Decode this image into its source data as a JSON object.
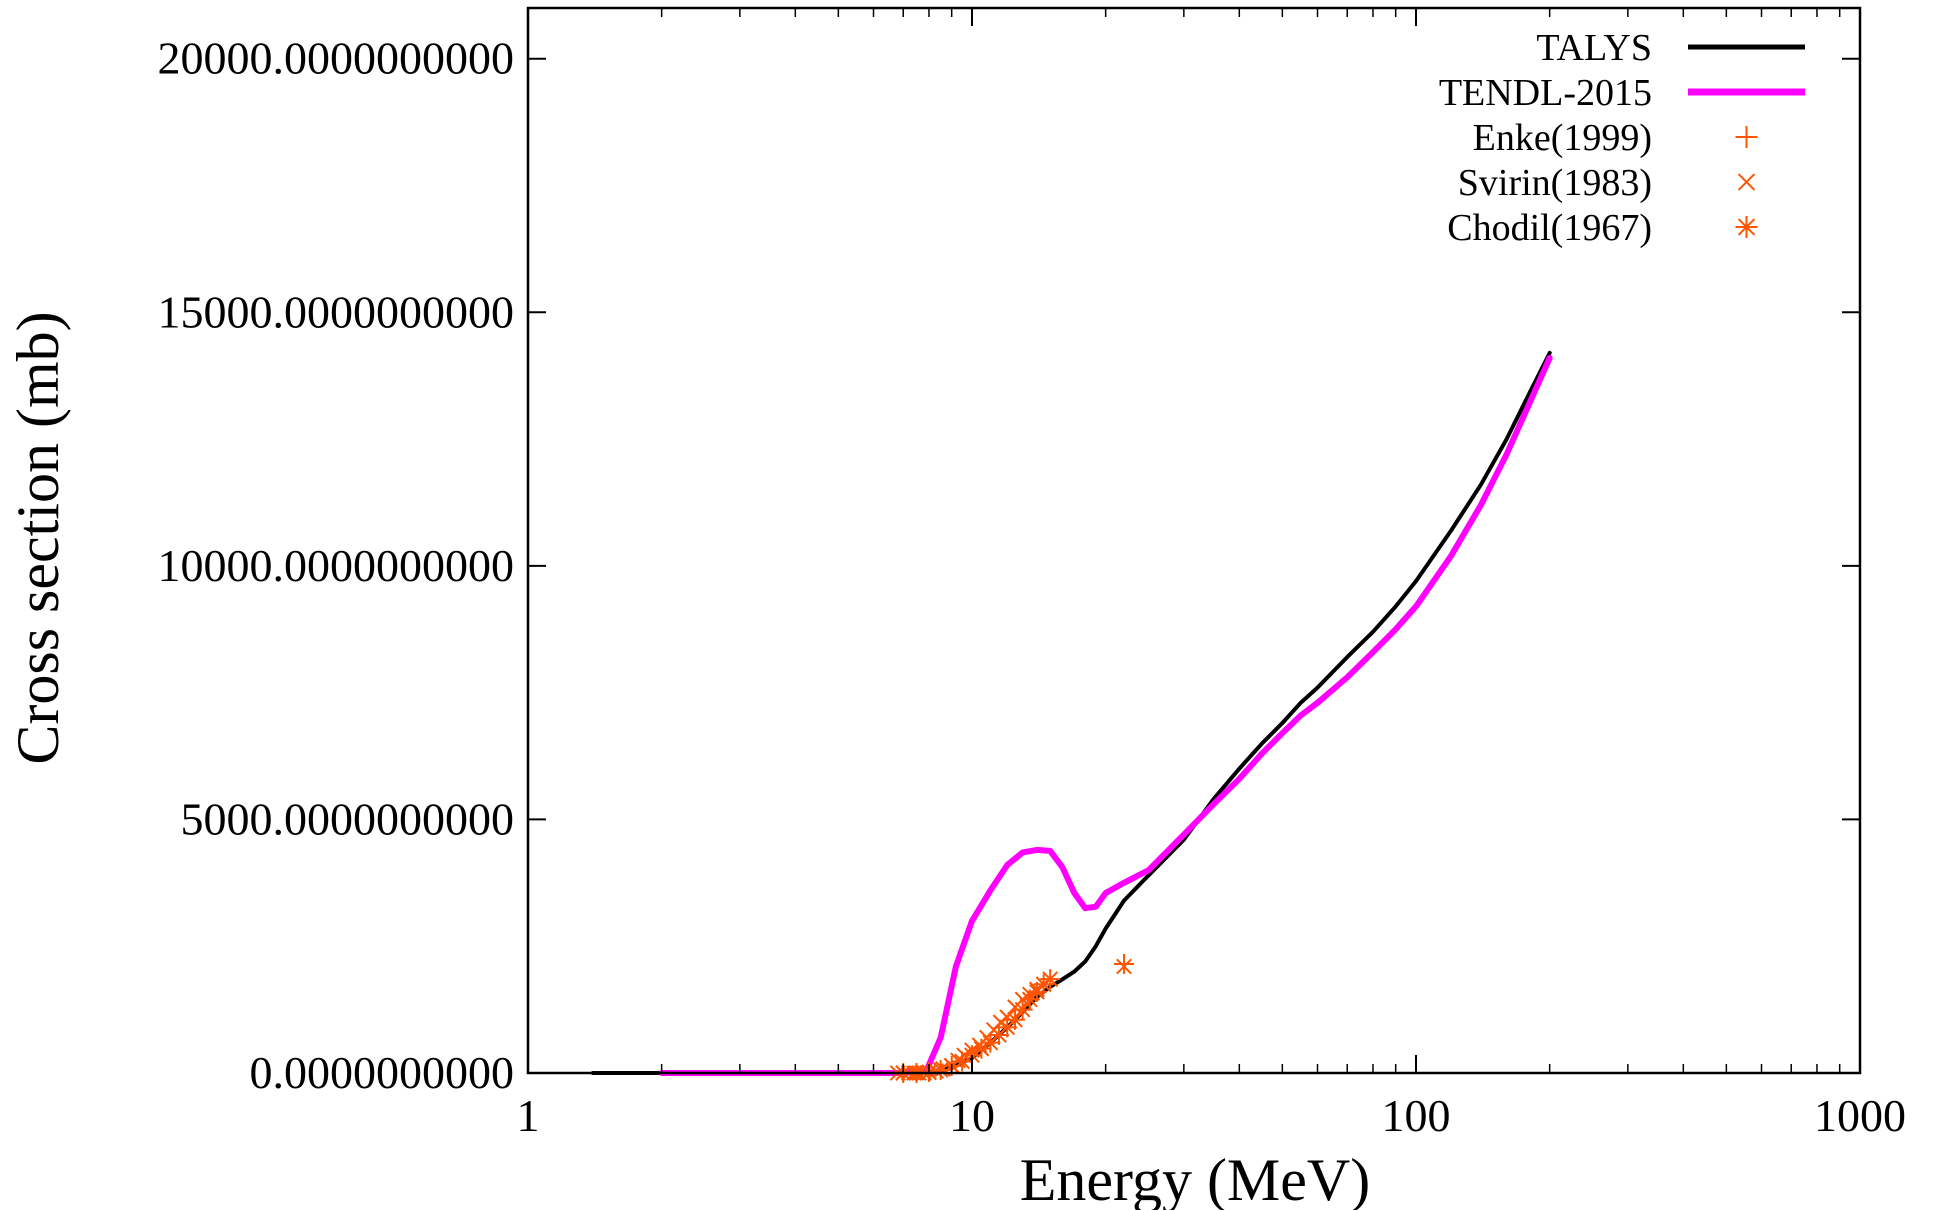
{
  "chart_data": {
    "type": "line",
    "xlabel": "Energy (MeV)",
    "ylabel": "Cross section (mb)",
    "xscale": "log",
    "xlim": [
      1,
      1000
    ],
    "ylim": [
      0,
      21000
    ],
    "xticks": [
      1,
      10,
      100,
      1000
    ],
    "xtick_labels": [
      "1",
      "10",
      "100",
      "1000"
    ],
    "yticks": [
      0,
      5000,
      10000,
      15000,
      20000
    ],
    "ytick_labels": [
      "0.0000000000",
      "5000.0000000000",
      "10000.0000000000",
      "15000.0000000000",
      "20000.0000000000"
    ],
    "grid": false,
    "legend_position": "top-right",
    "series": [
      {
        "name": "TALYS",
        "kind": "line",
        "color": "#000000",
        "x": [
          1.4,
          2,
          3,
          5,
          7,
          8,
          9,
          10,
          11,
          12,
          13,
          14,
          15,
          16,
          17,
          18,
          19,
          20,
          22,
          25,
          30,
          35,
          40,
          45,
          50,
          55,
          60,
          70,
          80,
          90,
          100,
          120,
          140,
          160,
          180,
          200
        ],
        "y": [
          0,
          0,
          0,
          0,
          0,
          20,
          100,
          300,
          600,
          900,
          1200,
          1500,
          1700,
          1850,
          2000,
          2200,
          2500,
          2850,
          3400,
          3900,
          4600,
          5400,
          6000,
          6500,
          6900,
          7300,
          7600,
          8200,
          8700,
          9200,
          9700,
          10700,
          11600,
          12500,
          13400,
          14200
        ]
      },
      {
        "name": "TENDL-2015",
        "kind": "line",
        "color": "#ff00ff",
        "x": [
          2,
          3,
          5,
          7,
          7.9,
          8.5,
          9.2,
          10,
          11,
          12,
          13,
          14,
          15,
          16,
          17,
          18,
          19,
          20,
          22,
          25,
          30,
          35,
          40,
          45,
          50,
          55,
          60,
          70,
          80,
          90,
          100,
          120,
          140,
          160,
          180,
          200
        ],
        "y": [
          0,
          0,
          0,
          0,
          50,
          700,
          2100,
          3000,
          3600,
          4100,
          4350,
          4400,
          4380,
          4050,
          3550,
          3250,
          3280,
          3550,
          3750,
          4000,
          4700,
          5300,
          5800,
          6300,
          6700,
          7050,
          7300,
          7800,
          8300,
          8750,
          9200,
          10200,
          11200,
          12200,
          13200,
          14100
        ]
      },
      {
        "name": "Enke(1999)",
        "kind": "points",
        "marker": "+",
        "color": "#ff5500",
        "x": [
          22.0
        ],
        "y": [
          2150
        ]
      },
      {
        "name": "Svirin(1983)",
        "kind": "points",
        "marker": "x",
        "color": "#ff5500",
        "x": [
          6.8,
          7.0,
          7.2,
          7.4,
          7.6,
          7.8,
          8.0,
          8.3,
          8.6,
          9.0,
          9.3,
          9.6,
          10.0,
          10.4,
          10.8,
          11.2,
          11.6,
          12.0,
          12.5,
          13.0,
          13.5,
          14.0,
          14.5,
          22.0
        ],
        "y": [
          0,
          0,
          0,
          0,
          0,
          0,
          10,
          40,
          80,
          150,
          250,
          350,
          450,
          550,
          700,
          850,
          1000,
          1100,
          1300,
          1450,
          1550,
          1650,
          1750,
          2100
        ]
      },
      {
        "name": "Chodil(1967)",
        "kind": "points",
        "marker": "*",
        "color": "#ff5500",
        "x": [
          7.0,
          7.5,
          8.0,
          8.5,
          9.0,
          9.5,
          10.0,
          10.5,
          11.0,
          11.5,
          12.0,
          12.5,
          13.0,
          13.5,
          14.0,
          14.5,
          15.0
        ],
        "y": [
          0,
          0,
          20,
          60,
          140,
          230,
          350,
          480,
          600,
          750,
          900,
          1050,
          1250,
          1450,
          1600,
          1750,
          1850
        ]
      }
    ]
  }
}
